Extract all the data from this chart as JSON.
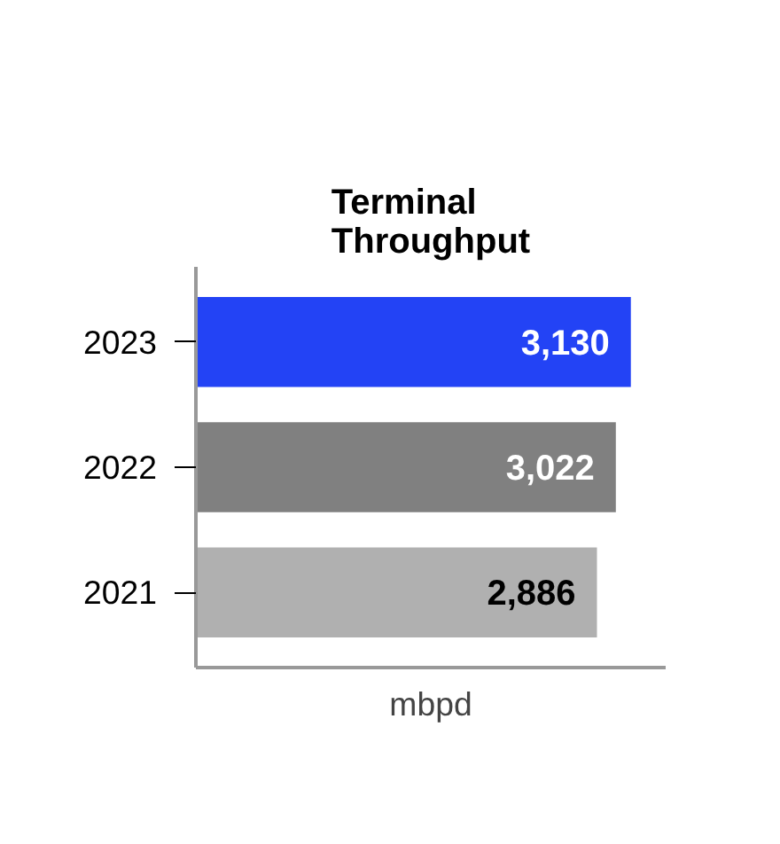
{
  "chart_data": {
    "type": "bar",
    "orientation": "horizontal",
    "title": "Terminal\nThroughput",
    "xlabel": "mbpd",
    "categories": [
      "2023",
      "2022",
      "2021"
    ],
    "values": [
      3130,
      3022,
      2886
    ],
    "value_labels": [
      "3,130",
      "3,022",
      "2,886"
    ],
    "colors": [
      "#2343f5",
      "#808080",
      "#b0b0b0"
    ],
    "grid": false,
    "tick_labels": "y"
  }
}
